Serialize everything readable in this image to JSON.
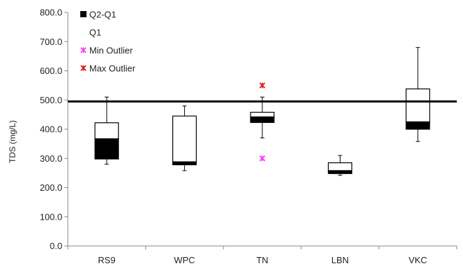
{
  "chart_data": {
    "type": "box",
    "ylabel": "TDS (mg/L)",
    "ylim": [
      0,
      800
    ],
    "y_ticks": [
      "0.0",
      "100.0",
      "200.0",
      "300.0",
      "400.0",
      "500.0",
      "600.0",
      "700.0",
      "800.0"
    ],
    "categories": [
      "RS9",
      "WPC",
      "TN",
      "LBN",
      "VKC"
    ],
    "boxes": [
      {
        "category": "RS9",
        "min": 280,
        "q1": 298,
        "median": 367,
        "q3": 422,
        "max": 510
      },
      {
        "category": "WPC",
        "min": 258,
        "q1": 278,
        "median": 288,
        "q3": 445,
        "max": 480
      },
      {
        "category": "TN",
        "min": 370,
        "q1": 423,
        "median": 442,
        "q3": 458,
        "max": 510
      },
      {
        "category": "LBN",
        "min": 242,
        "q1": 248,
        "median": 258,
        "q3": 285,
        "max": 310
      },
      {
        "category": "VKC",
        "min": 358,
        "q1": 400,
        "median": 425,
        "q3": 538,
        "max": 680
      }
    ],
    "outliers": [
      {
        "category": "TN",
        "type": "min",
        "value": 300
      },
      {
        "category": "TN",
        "type": "max",
        "value": 550
      }
    ],
    "reference_line": 495,
    "legend": [
      {
        "label": "Q2-Q1",
        "marker": "filled-square"
      },
      {
        "label": "Q1",
        "marker": "none"
      },
      {
        "label": "Min Outlier",
        "marker": "star",
        "color": "#ff33ff"
      },
      {
        "label": "Max Outlier",
        "marker": "star",
        "color": "#e01010"
      }
    ],
    "legend_position": "top-left",
    "colors": {
      "box_fill": "#ffffff",
      "box_lower": "#000000",
      "outline": "#000000",
      "min_outlier": "#ff33ff",
      "max_outlier": "#e01010"
    }
  }
}
